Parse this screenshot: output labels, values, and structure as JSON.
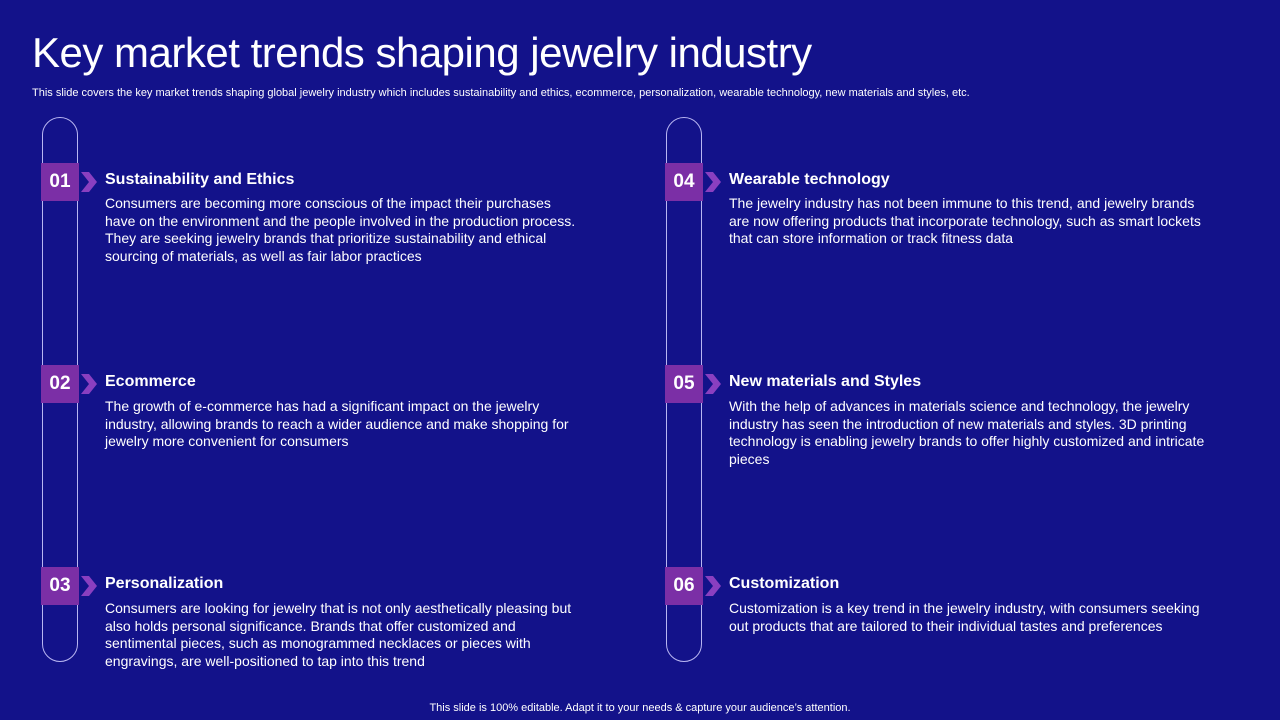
{
  "slide": {
    "title": "Key market trends shaping jewelry industry",
    "subtitle": "This slide covers the key market trends shaping global jewelry industry which includes sustainability and ethics, ecommerce, personalization, wearable technology, new materials and styles, etc.",
    "footer": "This slide is 100% editable. Adapt it to your needs & capture your audience’s attention."
  },
  "colors": {
    "background": "#13128a",
    "badge": "#7b2fa6",
    "chevron": "#8a3fc0",
    "track": "#b9b6f2"
  },
  "trends": [
    {
      "number": "01",
      "title": "Sustainability and Ethics",
      "body": "Consumers are becoming more conscious of the impact their purchases have on the environment and the people involved in the production process. They are seeking jewelry brands that prioritize sustainability and ethical sourcing of materials, as well as fair labor practices"
    },
    {
      "number": "02",
      "title": "Ecommerce",
      "body": "The growth of e-commerce has had a significant impact on the jewelry industry, allowing brands to reach a wider audience and make shopping for jewelry more convenient for consumers"
    },
    {
      "number": "03",
      "title": "Personalization",
      "body": "Consumers are looking for jewelry that is not only aesthetically pleasing but also holds personal significance. Brands that offer customized and sentimental pieces, such as monogrammed necklaces or pieces with engravings, are well-positioned to tap into this trend"
    },
    {
      "number": "04",
      "title": "Wearable technology",
      "body": "The jewelry industry has not been immune to this trend, and jewelry brands are now offering products that incorporate technology, such as smart lockets that can store information or track fitness data"
    },
    {
      "number": "05",
      "title": "New materials and Styles",
      "body": "With the help of advances in materials science and technology, the jewelry industry has seen the introduction of new materials and styles. 3D printing technology is enabling jewelry brands to offer highly customized and intricate pieces"
    },
    {
      "number": "06",
      "title": "Customization",
      "body": "Customization is a key trend in the jewelry industry, with consumers seeking out products that are tailored to their individual tastes and preferences"
    }
  ]
}
